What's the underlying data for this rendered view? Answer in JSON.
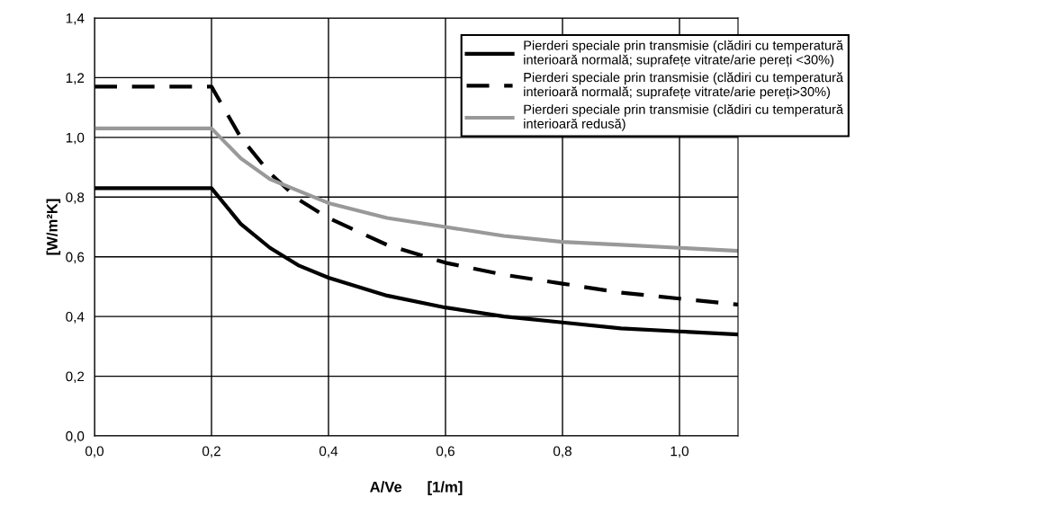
{
  "chart_data": {
    "type": "line",
    "xlabel": "A/Ve      [1/m]",
    "ylabel": "[W/m²K]",
    "x": [
      0,
      0.2,
      0.25,
      0.3,
      0.35,
      0.4,
      0.5,
      0.6,
      0.7,
      0.8,
      0.9,
      1.0,
      1.1
    ],
    "series": [
      {
        "name": "Pierderi speciale prin transmisie (clădiri cu temperatură\ninterioară normală; suprafețe vitrate/arie pereți <30%)",
        "color": "#000000",
        "line_style": "solid",
        "values": [
          0.83,
          0.83,
          0.71,
          0.63,
          0.57,
          0.53,
          0.47,
          0.43,
          0.4,
          0.38,
          0.36,
          0.35,
          0.34
        ]
      },
      {
        "name": "Pierderi speciale prin transmisie (clădiri cu temperatură\ninterioară normală; suprafețe vitrate/arie pereți>30%)",
        "color": "#000000",
        "line_style": "dashed",
        "values": [
          1.17,
          1.17,
          1.0,
          0.88,
          0.79,
          0.73,
          0.64,
          0.58,
          0.54,
          0.51,
          0.48,
          0.46,
          0.44
        ]
      },
      {
        "name": "Pierderi speciale prin transmisie (clădiri cu temperatură\ninterioară redusă)",
        "color": "#999999",
        "line_style": "solid",
        "values": [
          1.03,
          1.03,
          0.93,
          0.86,
          0.82,
          0.78,
          0.73,
          0.7,
          0.67,
          0.65,
          0.64,
          0.63,
          0.62
        ]
      }
    ],
    "xlim": [
      0,
      1.1
    ],
    "ylim": [
      0,
      1.4
    ],
    "xticks": [
      {
        "value": 0,
        "label": "0,0"
      },
      {
        "value": 0.2,
        "label": "0,2"
      },
      {
        "value": 0.4,
        "label": "0,4"
      },
      {
        "value": 0.6,
        "label": "0,6"
      },
      {
        "value": 0.8,
        "label": "0,8"
      },
      {
        "value": 1.0,
        "label": "1,0"
      }
    ],
    "yticks": [
      {
        "value": 0,
        "label": "0,0"
      },
      {
        "value": 0.2,
        "label": "0,2"
      },
      {
        "value": 0.4,
        "label": "0,4"
      },
      {
        "value": 0.6,
        "label": "0,6"
      },
      {
        "value": 0.8,
        "label": "0,8"
      },
      {
        "value": 1.0,
        "label": "1,0"
      },
      {
        "value": 1.2,
        "label": "1,2"
      },
      {
        "value": 1.4,
        "label": "1,4"
      }
    ],
    "grid": true,
    "legend": "top right",
    "marker": "none"
  }
}
